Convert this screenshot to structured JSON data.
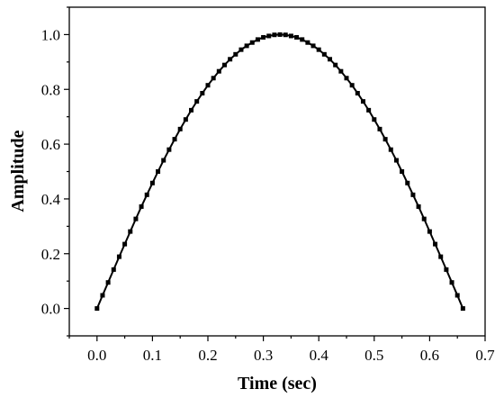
{
  "chart_data": {
    "type": "line",
    "title": "",
    "xlabel": "Time (sec)",
    "ylabel": "Amplitude",
    "xlim": [
      -0.05,
      0.7
    ],
    "ylim": [
      -0.1,
      1.1
    ],
    "x_ticks": [
      "0.0",
      "0.1",
      "0.2",
      "0.3",
      "0.4",
      "0.5",
      "0.6",
      "0.7"
    ],
    "y_ticks": [
      "0.0",
      "0.2",
      "0.4",
      "0.6",
      "0.8",
      "1.0"
    ],
    "grid": false,
    "legend": "none",
    "marker": "square",
    "line_color": "#000000",
    "series": [
      {
        "x": [
          0.0,
          0.01,
          0.02,
          0.03,
          0.04,
          0.05,
          0.06,
          0.07,
          0.08,
          0.09,
          0.1,
          0.11,
          0.12,
          0.13,
          0.14,
          0.15,
          0.16,
          0.17,
          0.18,
          0.19,
          0.2,
          0.21,
          0.22,
          0.23,
          0.24,
          0.25,
          0.26,
          0.27,
          0.28,
          0.29,
          0.3,
          0.31,
          0.32,
          0.33,
          0.34,
          0.35,
          0.36,
          0.37,
          0.38,
          0.39,
          0.4,
          0.41,
          0.42,
          0.43,
          0.44,
          0.45,
          0.46,
          0.47,
          0.48,
          0.49,
          0.5,
          0.51,
          0.52,
          0.53,
          0.54,
          0.55,
          0.56,
          0.57,
          0.58,
          0.59,
          0.6,
          0.61,
          0.62,
          0.63,
          0.64,
          0.65,
          0.66
        ],
        "y": [
          0.0,
          0.048,
          0.095,
          0.142,
          0.189,
          0.235,
          0.281,
          0.327,
          0.372,
          0.415,
          0.458,
          0.5,
          0.541,
          0.58,
          0.618,
          0.655,
          0.69,
          0.724,
          0.756,
          0.786,
          0.815,
          0.841,
          0.866,
          0.889,
          0.91,
          0.928,
          0.945,
          0.959,
          0.971,
          0.982,
          0.99,
          0.995,
          0.999,
          1.0,
          0.999,
          0.995,
          0.99,
          0.982,
          0.971,
          0.959,
          0.945,
          0.928,
          0.91,
          0.889,
          0.866,
          0.841,
          0.815,
          0.786,
          0.756,
          0.724,
          0.69,
          0.655,
          0.618,
          0.58,
          0.541,
          0.5,
          0.458,
          0.415,
          0.372,
          0.327,
          0.281,
          0.235,
          0.189,
          0.142,
          0.095,
          0.048,
          0.0
        ]
      }
    ]
  }
}
